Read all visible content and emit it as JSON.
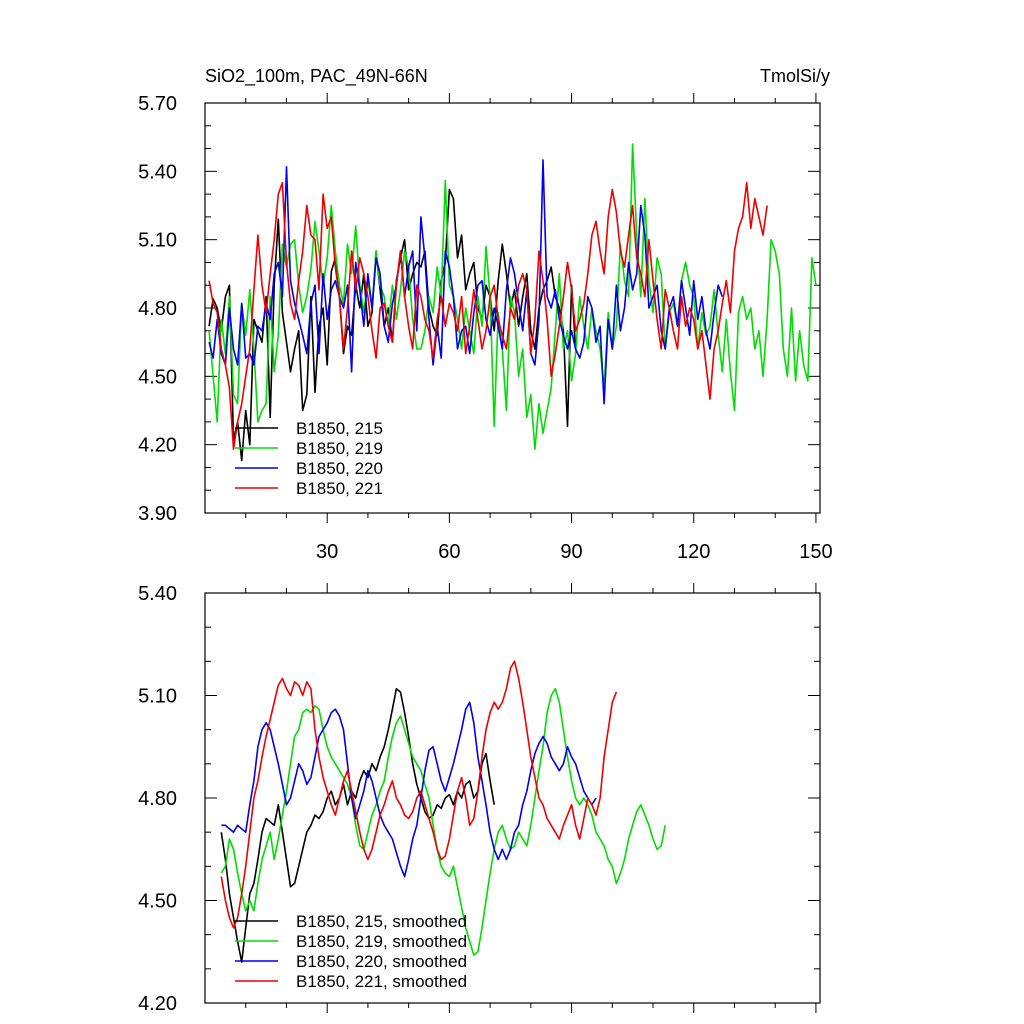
{
  "chart_data": [
    {
      "type": "line",
      "title": "SiO2_100m, PAC_49N-66N",
      "units": "TmolSi/y",
      "xlabel": "",
      "ylabel": "",
      "xlim": [
        0,
        151
      ],
      "ylim": [
        3.9,
        5.7
      ],
      "xticks": [
        30,
        60,
        90,
        120,
        150
      ],
      "xtick_labels": [
        "30",
        "60",
        "90",
        "120",
        "150"
      ],
      "yticks": [
        3.9,
        4.2,
        4.5,
        4.8,
        5.1,
        5.4,
        5.7
      ],
      "ytick_labels": [
        "3.90",
        "4.20",
        "4.50",
        "4.80",
        "5.10",
        "5.40",
        "5.70"
      ],
      "legend_position": "bottom-left",
      "grid": false,
      "series": [
        {
          "name": "B1850, 215",
          "color": "#000000",
          "x_start": 1,
          "values": [
            4.72,
            4.84,
            4.8,
            4.7,
            4.85,
            4.9,
            4.22,
            4.3,
            4.13,
            4.35,
            4.2,
            4.75,
            4.7,
            4.65,
            4.85,
            4.32,
            4.9,
            5.19,
            4.78,
            4.65,
            4.52,
            4.62,
            4.7,
            4.35,
            4.42,
            4.85,
            4.43,
            4.72,
            4.8,
            4.55,
            4.96,
            5.02,
            4.85,
            4.6,
            4.72,
            4.68,
            4.9,
            4.8,
            4.95,
            4.72,
            4.78,
            5.05,
            4.88,
            4.72,
            4.8,
            4.65,
            4.92,
            5.02,
            5.1,
            4.88,
            4.95,
            5.0,
            4.98,
            5.05,
            4.8,
            4.72,
            4.68,
            4.92,
            5.0,
            5.32,
            5.28,
            5.02,
            5.12,
            4.88,
            4.95,
            5.0,
            4.8,
            4.75,
            4.9,
            4.85,
            4.7,
            4.92,
            5.08,
            4.95,
            4.8,
            4.88,
            4.72,
            4.85,
            4.95,
            4.7,
            4.62,
            4.8,
            4.88,
            4.92,
            4.98,
            4.85,
            4.8,
            4.7,
            4.28,
            4.9,
            4.62
          ]
        },
        {
          "name": "B1850, 219",
          "color": "#00dd00",
          "x_start": 1,
          "values": [
            4.7,
            4.5,
            4.3,
            4.75,
            4.6,
            4.85,
            4.42,
            4.38,
            4.82,
            4.68,
            4.88,
            4.62,
            4.3,
            4.35,
            4.38,
            4.85,
            4.52,
            4.68,
            5.08,
            4.98,
            5.08,
            5.1,
            4.9,
            4.78,
            4.85,
            4.97,
            5.18,
            5.05,
            4.9,
            5.02,
            5.25,
            5.05,
            4.9,
            4.82,
            5.08,
            4.95,
            5.16,
            4.9,
            4.78,
            4.92,
            4.8,
            5.05,
            4.9,
            4.85,
            4.72,
            4.9,
            4.75,
            4.88,
            5.05,
            4.98,
            4.75,
            4.62,
            4.62,
            4.7,
            4.85,
            4.78,
            4.98,
            4.85,
            5.36,
            4.9,
            4.85,
            4.75,
            4.62,
            4.8,
            4.7,
            4.6,
            4.85,
            4.72,
            5.07,
            4.85,
            4.28,
            4.78,
            4.62,
            4.35,
            4.85,
            4.78,
            4.5,
            4.62,
            4.32,
            4.42,
            4.18,
            4.38,
            4.25,
            4.35,
            4.45,
            4.7,
            4.95,
            4.62,
            4.7,
            4.48,
            4.6,
            4.85,
            4.72,
            4.62,
            4.8,
            4.7,
            4.62,
            4.45,
            4.78,
            4.62,
            4.72,
            5.08,
            4.92,
            4.85,
            5.52,
            5.12,
            4.85,
            5.28,
            4.92,
            4.78,
            5.02,
            4.95,
            4.62,
            4.78,
            4.82,
            4.72,
            4.92,
            5.0,
            4.9,
            4.85,
            4.62,
            4.78,
            4.68,
            4.72,
            4.88,
            4.68,
            4.52,
            4.75,
            4.52,
            4.35,
            4.78,
            4.85,
            4.75,
            4.8,
            4.62,
            4.7,
            4.5,
            4.75,
            5.1,
            5.05,
            4.95,
            4.62,
            4.5,
            4.8,
            4.48,
            4.7,
            4.55,
            4.48,
            5.02,
            4.9
          ]
        },
        {
          "name": "B1850, 220",
          "color": "#0000ee",
          "x_start": 1,
          "values": [
            4.65,
            4.58,
            4.75,
            4.6,
            4.55,
            4.8,
            4.62,
            4.55,
            4.82,
            4.58,
            4.6,
            4.55,
            4.72,
            4.7,
            4.82,
            4.75,
            4.95,
            5.0,
            4.85,
            5.42,
            4.92,
            4.82,
            4.75,
            4.68,
            4.6,
            4.82,
            4.9,
            4.6,
            4.95,
            4.75,
            4.88,
            4.92,
            4.85,
            4.8,
            4.9,
            4.52,
            5.0,
            4.88,
            4.72,
            4.95,
            4.8,
            5.02,
            4.95,
            4.72,
            4.65,
            4.82,
            4.9,
            5.05,
            4.85,
            4.98,
            5.05,
            4.7,
            5.2,
            5.02,
            4.75,
            4.55,
            4.72,
            4.58,
            5.05,
            4.98,
            4.85,
            4.62,
            4.7,
            4.72,
            4.6,
            4.78,
            4.9,
            4.92,
            4.75,
            4.68,
            4.8,
            4.72,
            4.62,
            4.88,
            5.02,
            4.95,
            4.82,
            4.7,
            4.88,
            4.6,
            4.55,
            4.75,
            5.45,
            4.85,
            4.8,
            4.88,
            4.75,
            4.68,
            4.62,
            4.7,
            4.62,
            4.58,
            4.65,
            4.85,
            4.8,
            4.65,
            4.72,
            4.38,
            4.75,
            4.62,
            4.9,
            4.7,
            4.8,
            5.0,
            4.88,
            4.95,
            5.25,
            5.12,
            4.8,
            4.85,
            4.9,
            4.7,
            4.62,
            4.8,
            4.85,
            4.72,
            4.92,
            4.8,
            4.68,
            4.92,
            4.75,
            4.85,
            4.7,
            4.62,
            4.78,
            4.9,
            4.85
          ]
        },
        {
          "name": "B1850, 221",
          "color": "#ee0000",
          "x_start": 1,
          "values": [
            4.92,
            4.82,
            4.78,
            4.62,
            4.55,
            4.45,
            4.18,
            4.3,
            4.38,
            4.5,
            4.62,
            4.88,
            5.12,
            4.9,
            4.78,
            4.95,
            5.1,
            5.3,
            5.35,
            5.0,
            4.82,
            4.75,
            4.92,
            5.05,
            5.25,
            5.12,
            5.1,
            4.88,
            5.3,
            5.15,
            5.2,
            4.98,
            4.85,
            4.62,
            4.8,
            5.05,
            4.88,
            5.02,
            4.95,
            4.85,
            4.7,
            4.58,
            4.8,
            4.82,
            4.72,
            4.65,
            4.9,
            5.05,
            4.85,
            4.72,
            4.62,
            4.9,
            4.85,
            4.75,
            4.7,
            4.58,
            4.75,
            4.85,
            4.72,
            4.82,
            4.78,
            4.7,
            4.85,
            4.6,
            4.72,
            4.88,
            4.75,
            4.62,
            4.7,
            4.85,
            4.9,
            4.75,
            4.68,
            4.62,
            4.8,
            4.75,
            4.9,
            4.95,
            4.88,
            4.6,
            4.75,
            5.05,
            4.92,
            4.75,
            4.5,
            4.6,
            4.72,
            4.85,
            5.0,
            4.88,
            4.7,
            4.75,
            4.82,
            4.95,
            5.12,
            5.18,
            5.05,
            4.95,
            5.2,
            5.32,
            5.22,
            5.05,
            4.98,
            5.12,
            5.25,
            5.02,
            4.95,
            4.85,
            5.1,
            4.92,
            4.75,
            4.62,
            4.88,
            4.8,
            4.7,
            4.62,
            4.85,
            4.72,
            4.8,
            4.75,
            4.62,
            4.7,
            4.55,
            4.4,
            4.62,
            4.7,
            4.82,
            4.92,
            4.78,
            5.05,
            5.15,
            5.2,
            5.35,
            5.15,
            5.28,
            5.2,
            5.12,
            5.25
          ]
        }
      ]
    },
    {
      "type": "line",
      "title": "",
      "xlabel": "",
      "ylabel": "",
      "xlim": [
        0,
        151
      ],
      "ylim": [
        4.2,
        5.4
      ],
      "xticks": [
        30,
        60,
        90,
        120,
        150
      ],
      "yticks": [
        4.2,
        4.5,
        4.8,
        5.1,
        5.4
      ],
      "ytick_labels": [
        "4.20",
        "4.50",
        "4.80",
        "5.10",
        "5.40"
      ],
      "legend_position": "bottom-left",
      "grid": false,
      "series": [
        {
          "name": "B1850, 215, smoothed",
          "color": "#000000",
          "x_start": 4,
          "values": [
            4.7,
            4.62,
            4.52,
            4.45,
            4.38,
            4.32,
            4.42,
            4.52,
            4.55,
            4.62,
            4.7,
            4.74,
            4.73,
            4.72,
            4.78,
            4.7,
            4.62,
            4.54,
            4.55,
            4.6,
            4.65,
            4.7,
            4.72,
            4.75,
            4.74,
            4.76,
            4.8,
            4.82,
            4.78,
            4.8,
            4.84,
            4.78,
            4.82,
            4.8,
            4.85,
            4.88,
            4.86,
            4.9,
            4.88,
            4.92,
            4.95,
            5.0,
            5.06,
            5.12,
            5.11,
            5.05,
            4.98,
            4.9,
            4.84,
            4.8,
            4.76,
            4.74,
            4.75,
            4.78,
            4.77,
            4.8,
            4.81,
            4.78,
            4.82,
            4.8,
            4.84,
            4.85,
            4.8,
            4.82,
            4.9,
            4.93,
            4.85,
            4.78
          ]
        },
        {
          "name": "B1850, 219",
          "color": "#00dd00",
          "x_start": 4,
          "values": [
            4.58,
            4.6,
            4.68,
            4.65,
            4.58,
            4.52,
            4.47,
            4.5,
            4.47,
            4.55,
            4.62,
            4.66,
            4.7,
            4.62,
            4.68,
            4.75,
            4.82,
            4.9,
            4.98,
            5.0,
            5.05,
            5.06,
            5.05,
            5.07,
            5.06,
            5.0,
            4.95,
            4.92,
            4.9,
            4.88,
            4.86,
            4.84,
            4.8,
            4.72,
            4.66,
            4.65,
            4.7,
            4.75,
            4.78,
            4.82,
            4.85,
            4.92,
            4.98,
            5.02,
            5.04,
            5.0,
            4.96,
            4.92,
            4.9,
            4.88,
            4.84,
            4.8,
            4.72,
            4.65,
            4.6,
            4.58,
            4.57,
            4.6,
            4.54,
            4.48,
            4.42,
            4.38,
            4.34,
            4.35,
            4.42,
            4.5,
            4.58,
            4.65,
            4.7,
            4.72,
            4.68,
            4.65,
            4.66,
            4.7,
            4.68,
            4.66,
            4.72,
            4.8,
            4.88,
            4.95,
            5.05,
            5.1,
            5.12,
            5.08,
            5.0,
            4.92,
            4.85,
            4.8,
            4.78,
            4.8,
            4.78,
            4.75,
            4.7,
            4.68,
            4.66,
            4.62,
            4.6,
            4.55,
            4.58,
            4.62,
            4.68,
            4.72,
            4.76,
            4.78,
            4.75,
            4.72,
            4.68,
            4.65,
            4.66,
            4.72
          ]
        },
        {
          "name": "B1850, 220",
          "color": "#0000ee",
          "x_start": 4,
          "values": [
            4.72,
            4.72,
            4.71,
            4.7,
            4.72,
            4.71,
            4.7,
            4.78,
            4.85,
            4.95,
            5.0,
            5.02,
            5.0,
            4.95,
            4.9,
            4.84,
            4.78,
            4.8,
            4.85,
            4.9,
            4.88,
            4.84,
            4.86,
            4.92,
            4.98,
            5.0,
            5.02,
            5.05,
            5.06,
            5.04,
            5.0,
            4.9,
            4.8,
            4.74,
            4.78,
            4.82,
            4.88,
            4.85,
            4.8,
            4.75,
            4.72,
            4.7,
            4.68,
            4.64,
            4.6,
            4.57,
            4.62,
            4.68,
            4.72,
            4.8,
            4.88,
            4.94,
            4.95,
            4.9,
            4.85,
            4.82,
            4.86,
            4.9,
            4.95,
            5.0,
            5.06,
            5.08,
            5.02,
            4.92,
            4.85,
            4.78,
            4.7,
            4.65,
            4.62,
            4.65,
            4.62,
            4.65,
            4.7,
            4.72,
            4.78,
            4.82,
            4.88,
            4.93,
            4.96,
            4.98,
            4.96,
            4.92,
            4.9,
            4.88,
            4.9,
            4.95,
            4.92,
            4.9,
            4.86,
            4.82,
            4.8,
            4.78,
            4.8
          ]
        },
        {
          "name": "B1850, 221",
          "color": "#ee0000",
          "x_start": 4,
          "values": [
            4.57,
            4.5,
            4.45,
            4.42,
            4.45,
            4.52,
            4.6,
            4.7,
            4.8,
            4.85,
            4.92,
            4.98,
            5.03,
            5.08,
            5.13,
            5.15,
            5.12,
            5.1,
            5.14,
            5.13,
            5.1,
            5.14,
            5.12,
            5.0,
            4.92,
            4.86,
            4.82,
            4.78,
            4.75,
            4.8,
            4.85,
            4.88,
            4.82,
            4.76,
            4.7,
            4.65,
            4.62,
            4.65,
            4.7,
            4.75,
            4.78,
            4.82,
            4.85,
            4.8,
            4.78,
            4.75,
            4.74,
            4.76,
            4.8,
            4.82,
            4.78,
            4.74,
            4.7,
            4.65,
            4.62,
            4.63,
            4.68,
            4.75,
            4.82,
            4.86,
            4.8,
            4.72,
            4.74,
            4.82,
            4.92,
            5.0,
            5.05,
            5.08,
            5.06,
            5.08,
            5.12,
            5.18,
            5.2,
            5.15,
            5.08,
            5.0,
            4.92,
            4.86,
            4.8,
            4.78,
            4.74,
            4.72,
            4.7,
            4.68,
            4.72,
            4.75,
            4.78,
            4.72,
            4.68,
            4.74,
            4.8,
            4.78,
            4.75,
            4.8,
            4.92,
            5.0,
            5.08,
            5.11
          ]
        }
      ]
    }
  ]
}
